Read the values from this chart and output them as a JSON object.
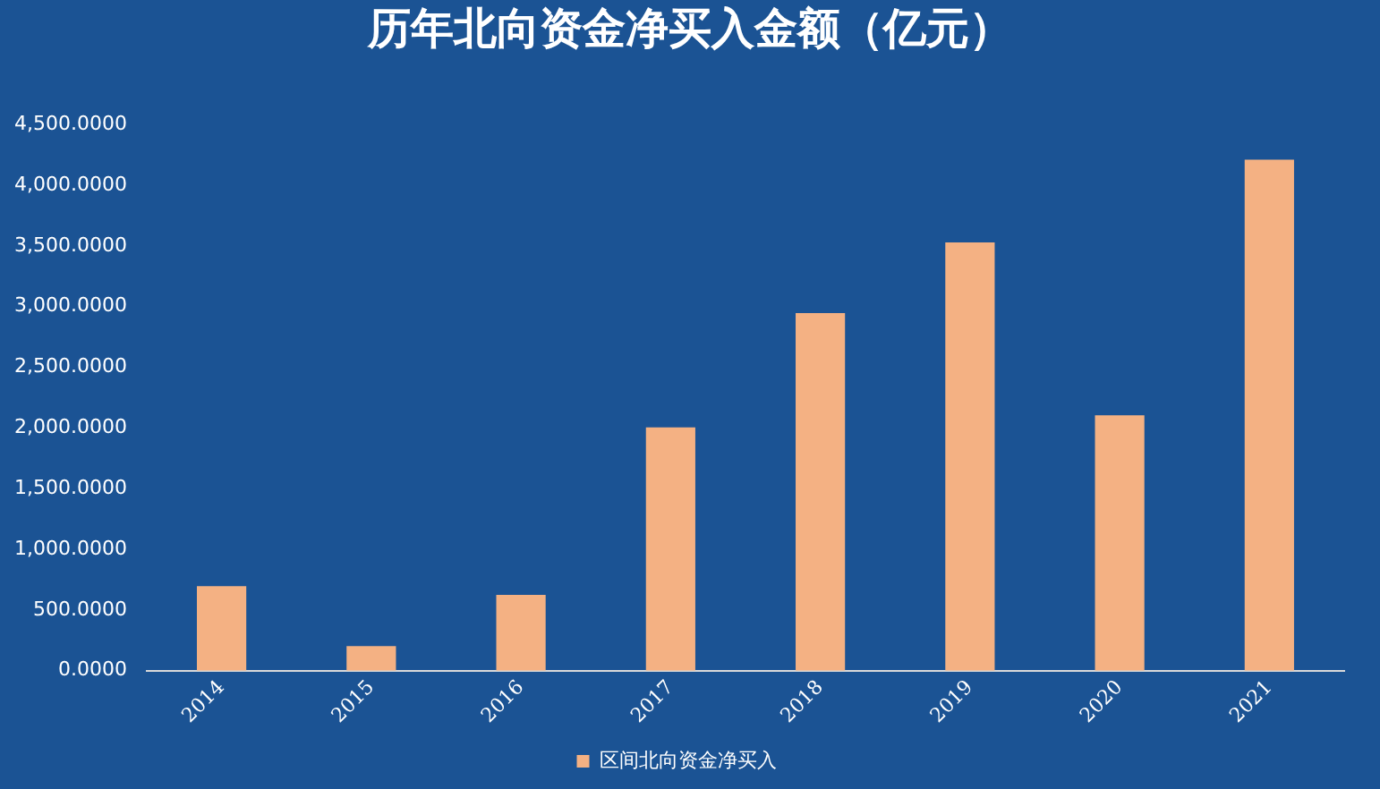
{
  "chart_data": {
    "type": "bar",
    "title": "历年北向资金净买入金额（亿元）",
    "categories": [
      "2014",
      "2015",
      "2016",
      "2017",
      "2018",
      "2019",
      "2020",
      "2021"
    ],
    "series": [
      {
        "name": "区间北向资金净买入",
        "color": "#f4b183",
        "values": [
          697,
          203,
          624,
          2004,
          2947,
          3528,
          2105,
          4211
        ]
      }
    ],
    "ylim": [
      0,
      4500
    ],
    "yticks": [
      {
        "value": 0,
        "label": "0.0000"
      },
      {
        "value": 500,
        "label": "500.0000"
      },
      {
        "value": 1000,
        "label": "1,000.0000"
      },
      {
        "value": 1500,
        "label": "1,500.0000"
      },
      {
        "value": 2000,
        "label": "2,000.0000"
      },
      {
        "value": 2500,
        "label": "2,500.0000"
      },
      {
        "value": 3000,
        "label": "3,000.0000"
      },
      {
        "value": 3500,
        "label": "3,500.0000"
      },
      {
        "value": 4000,
        "label": "4,000.0000"
      },
      {
        "value": 4500,
        "label": "4,500.0000"
      }
    ],
    "grid": false,
    "legend": "bottom"
  }
}
